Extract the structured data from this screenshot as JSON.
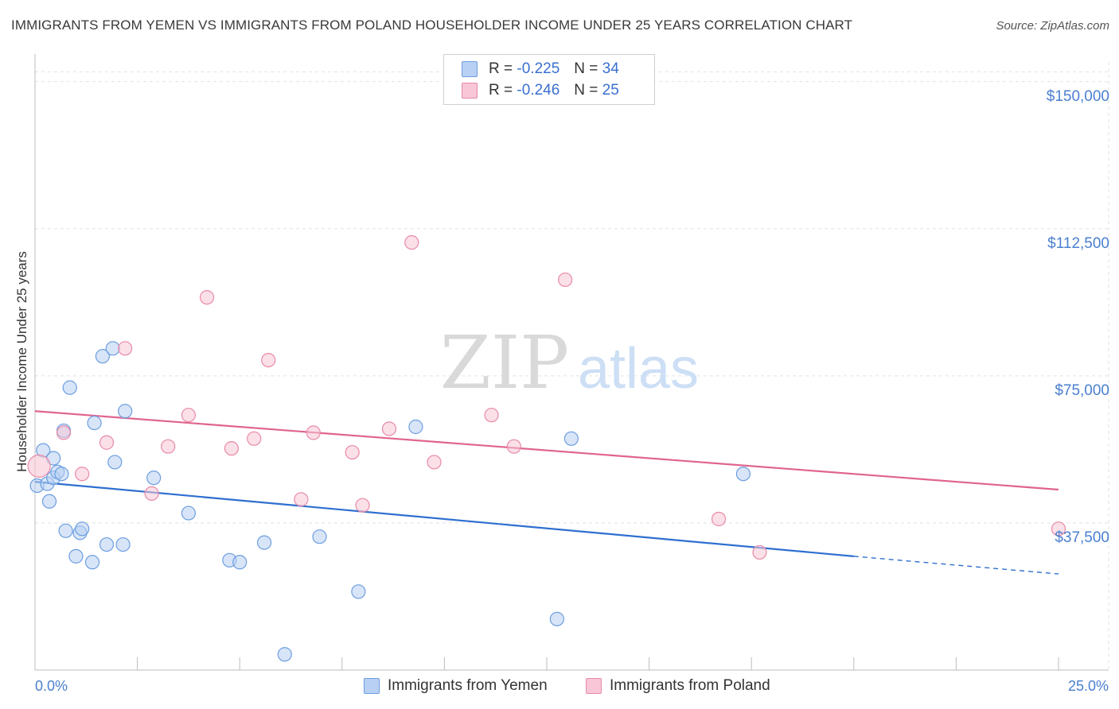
{
  "chart_data": {
    "type": "scatter",
    "title": "IMMIGRANTS FROM YEMEN VS IMMIGRANTS FROM POLAND HOUSEHOLDER INCOME UNDER 25 YEARS CORRELATION CHART",
    "source": "Source: ZipAtlas.com",
    "xlabel": "",
    "ylabel": "Householder Income Under 25 years",
    "xlim": [
      0,
      25
    ],
    "ylim": [
      0,
      155000
    ],
    "x_tick_labels": {
      "min": "0.0%",
      "max": "25.0%"
    },
    "y_ticks": [
      {
        "value": 37500,
        "label": "$37,500"
      },
      {
        "value": 75000,
        "label": "$75,000"
      },
      {
        "value": 112500,
        "label": "$112,500"
      },
      {
        "value": 150000,
        "label": "$150,000"
      }
    ],
    "legend": {
      "rows": [
        {
          "r_label": "R =",
          "r_value": "-0.225",
          "n_label": "N =",
          "n_value": "34"
        },
        {
          "r_label": "R =",
          "r_value": "-0.246",
          "n_label": "N =",
          "n_value": "25"
        }
      ]
    },
    "series": [
      {
        "name": "Immigrants from Yemen",
        "color": "#6c9ee0",
        "fill": "#b8d0f3",
        "line_color": "#2f6fcf",
        "trend": {
          "x0": 0,
          "y0": 48000,
          "x1": 20,
          "y1": 29000,
          "dash_to_x": 25,
          "dash_to_y": 24500
        },
        "points": [
          [
            0.05,
            47000
          ],
          [
            0.2,
            56000
          ],
          [
            0.3,
            47500
          ],
          [
            0.35,
            43000
          ],
          [
            0.45,
            54000
          ],
          [
            0.45,
            49000
          ],
          [
            0.55,
            50500
          ],
          [
            0.65,
            50000
          ],
          [
            0.7,
            61000
          ],
          [
            0.75,
            35500
          ],
          [
            0.85,
            72000
          ],
          [
            1.0,
            29000
          ],
          [
            1.1,
            35000
          ],
          [
            1.15,
            36000
          ],
          [
            1.4,
            27500
          ],
          [
            1.45,
            63000
          ],
          [
            1.65,
            80000
          ],
          [
            1.75,
            32000
          ],
          [
            1.9,
            82000
          ],
          [
            1.95,
            53000
          ],
          [
            2.15,
            32000
          ],
          [
            2.2,
            66000
          ],
          [
            2.9,
            49000
          ],
          [
            3.75,
            40000
          ],
          [
            4.75,
            28000
          ],
          [
            5.0,
            27500
          ],
          [
            5.6,
            32500
          ],
          [
            6.1,
            4000
          ],
          [
            6.95,
            34000
          ],
          [
            7.9,
            20000
          ],
          [
            9.3,
            62000
          ],
          [
            12.75,
            13000
          ],
          [
            13.1,
            59000
          ],
          [
            17.3,
            50000
          ]
        ]
      },
      {
        "name": "Immigrants from Poland",
        "color": "#e88aa8",
        "fill": "#f8c6d6",
        "line_color": "#e0648e",
        "trend": {
          "x0": 0,
          "y0": 66000,
          "x1": 25,
          "y1": 46000
        },
        "points": [
          [
            0.1,
            52000
          ],
          [
            0.7,
            60500
          ],
          [
            1.15,
            50000
          ],
          [
            1.75,
            58000
          ],
          [
            2.2,
            82000
          ],
          [
            2.85,
            45000
          ],
          [
            3.25,
            57000
          ],
          [
            3.75,
            65000
          ],
          [
            4.2,
            95000
          ],
          [
            4.8,
            56500
          ],
          [
            5.35,
            59000
          ],
          [
            5.7,
            79000
          ],
          [
            6.5,
            43500
          ],
          [
            6.8,
            60500
          ],
          [
            7.75,
            55500
          ],
          [
            8.0,
            42000
          ],
          [
            8.65,
            61500
          ],
          [
            9.2,
            109000
          ],
          [
            9.75,
            53000
          ],
          [
            11.15,
            65000
          ],
          [
            11.7,
            57000
          ],
          [
            12.95,
            99500
          ],
          [
            16.7,
            38500
          ],
          [
            17.7,
            30000
          ],
          [
            25.0,
            36000
          ]
        ]
      }
    ]
  }
}
